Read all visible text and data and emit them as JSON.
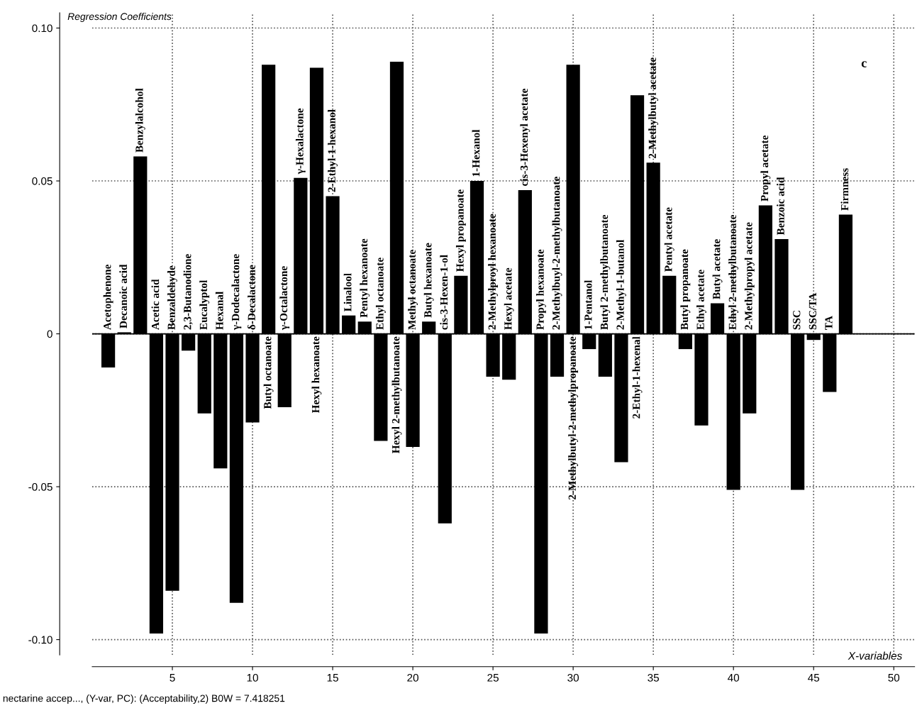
{
  "chart_data": {
    "type": "bar",
    "title": "Regression Coefficients",
    "xlabel": "X-variables",
    "x": [
      1,
      2,
      3,
      4,
      5,
      6,
      7,
      8,
      9,
      10,
      11,
      12,
      13,
      14,
      15,
      16,
      17,
      18,
      19,
      20,
      21,
      22,
      23,
      24,
      25,
      26,
      27,
      28,
      29,
      30,
      31,
      32,
      33,
      34,
      35,
      36,
      37,
      38,
      39,
      40,
      41,
      42,
      43,
      44,
      45,
      46,
      47
    ],
    "values": [
      -0.011,
      0.0005,
      0.058,
      -0.098,
      -0.084,
      -0.0055,
      -0.026,
      -0.044,
      -0.088,
      -0.029,
      0.088,
      -0.024,
      0.051,
      0.087,
      0.045,
      0.006,
      0.004,
      -0.035,
      0.089,
      -0.037,
      0.004,
      -0.062,
      0.019,
      0.05,
      -0.014,
      -0.015,
      0.047,
      -0.098,
      -0.014,
      0.088,
      -0.005,
      -0.014,
      -0.042,
      0.078,
      0.056,
      0.019,
      -0.005,
      -0.03,
      0.01,
      -0.051,
      -0.026,
      0.042,
      0.031,
      -0.051,
      -0.002,
      -0.019,
      0.039
    ],
    "color": "#000000",
    "xlim": [
      0,
      51.3
    ],
    "ylim": [
      -0.105,
      0.105
    ],
    "xticks": [
      5,
      10,
      15,
      20,
      25,
      30,
      35,
      40,
      45,
      50
    ],
    "yticks": [
      {
        "value": -0.1,
        "label": "-0.10"
      },
      {
        "value": -0.05,
        "label": "-0.05"
      },
      {
        "value": 0,
        "label": "0"
      },
      {
        "value": 0.05,
        "label": "0.05"
      },
      {
        "value": 0.1,
        "label": "0.10"
      }
    ],
    "grid": true,
    "line_style": "dotted",
    "ref_lines": [
      {
        "axis": "y",
        "value": 0,
        "color": "#000000",
        "line_style": "solid"
      }
    ],
    "annotations": [
      {
        "text": "Acetophenone",
        "x": 1,
        "y": 0
      },
      {
        "text": "Decanoic acid",
        "x": 2,
        "y": 0.0005
      },
      {
        "text": "Benzylalcohol",
        "x": 3,
        "y": 0.058
      },
      {
        "text": "Acetic acid",
        "x": 4,
        "y": 0
      },
      {
        "text": "Benzaldehyde",
        "x": 5,
        "y": 0
      },
      {
        "text": "2,3-Butanodione",
        "x": 6,
        "y": 0
      },
      {
        "text": "Eucalyptol",
        "x": 7,
        "y": 0
      },
      {
        "text": "Hexanal",
        "x": 8,
        "y": 0
      },
      {
        "text": "γ-Dodecalactone",
        "x": 9,
        "y": 0
      },
      {
        "text": "δ-Decalactone",
        "x": 10,
        "y": 0
      },
      {
        "text": "Butyl octanoate",
        "x": 11,
        "y": 0
      },
      {
        "text": "γ-Octalactone",
        "x": 12,
        "y": 0
      },
      {
        "text": "γ-Hexalactone",
        "x": 13,
        "y": 0.051
      },
      {
        "text": "Hexyl hexanoate",
        "x": 14,
        "y": 0
      },
      {
        "text": "2-Ethyl-1-hexanol",
        "x": 15,
        "y": 0.045
      },
      {
        "text": "Linalool",
        "x": 16,
        "y": 0.006
      },
      {
        "text": "Pentyl hexanoate",
        "x": 17,
        "y": 0.004
      },
      {
        "text": "Ethyl octanoate",
        "x": 18,
        "y": 0
      },
      {
        "text": "Hexyl 2-methylbutanoate",
        "x": 19,
        "y": 0
      },
      {
        "text": "Methyl octanoate",
        "x": 20,
        "y": 0
      },
      {
        "text": "Butyl hexanoate",
        "x": 21,
        "y": 0.004
      },
      {
        "text": "cis-3-Hexen-1-ol",
        "x": 22,
        "y": 0
      },
      {
        "text": "Hexyl propanoate",
        "x": 23,
        "y": 0.019
      },
      {
        "text": "1-Hexanol",
        "x": 24,
        "y": 0.05
      },
      {
        "text": "2-Methylproyl hexanoate",
        "x": 25,
        "y": 0
      },
      {
        "text": "Hexyl acetate",
        "x": 26,
        "y": 0
      },
      {
        "text": "cis-3-Hexenyl acetate",
        "x": 27,
        "y": 0.047
      },
      {
        "text": "Propyl hexanoate",
        "x": 28,
        "y": 0
      },
      {
        "text": "2-Methylbuyl-2-methylbutanoate",
        "x": 29,
        "y": 0
      },
      {
        "text": "2-Methylbutyl-2-methylpropanoate",
        "x": 30,
        "y": 0
      },
      {
        "text": "1-Pentanol",
        "x": 31,
        "y": 0
      },
      {
        "text": "Butyl 2-methylbutanoate",
        "x": 32,
        "y": 0
      },
      {
        "text": "2-Methyl-1-butanol",
        "x": 33,
        "y": 0
      },
      {
        "text": "2-Ethyl-1-hexenal",
        "x": 34,
        "y": 0
      },
      {
        "text": "2-Methylbutyl acetate",
        "x": 35,
        "y": 0.056
      },
      {
        "text": "Pentyl acetate",
        "x": 36,
        "y": 0.019
      },
      {
        "text": "Butyl propanoate",
        "x": 37,
        "y": 0
      },
      {
        "text": "Ethyl acetate",
        "x": 38,
        "y": 0
      },
      {
        "text": "Butyl acetate",
        "x": 39,
        "y": 0.01
      },
      {
        "text": "Ethyl 2-methylbutanoate",
        "x": 40,
        "y": 0
      },
      {
        "text": "2-Methylpropyl acetate",
        "x": 41,
        "y": 0
      },
      {
        "text": "Propyl acetate",
        "x": 42,
        "y": 0.042
      },
      {
        "text": "Benzoic acid",
        "x": 43,
        "y": 0.031
      },
      {
        "text": "SSC",
        "x": 44,
        "y": 0
      },
      {
        "text": "SSC/TA",
        "x": 45,
        "y": 0
      },
      {
        "text": "TA",
        "x": 46,
        "y": 0
      },
      {
        "text": "Firmness",
        "x": 47,
        "y": 0.039
      },
      "c",
      "nectarine accep..., (Y-var, PC): (Acceptability,2) B0W = 7.418251"
    ]
  }
}
